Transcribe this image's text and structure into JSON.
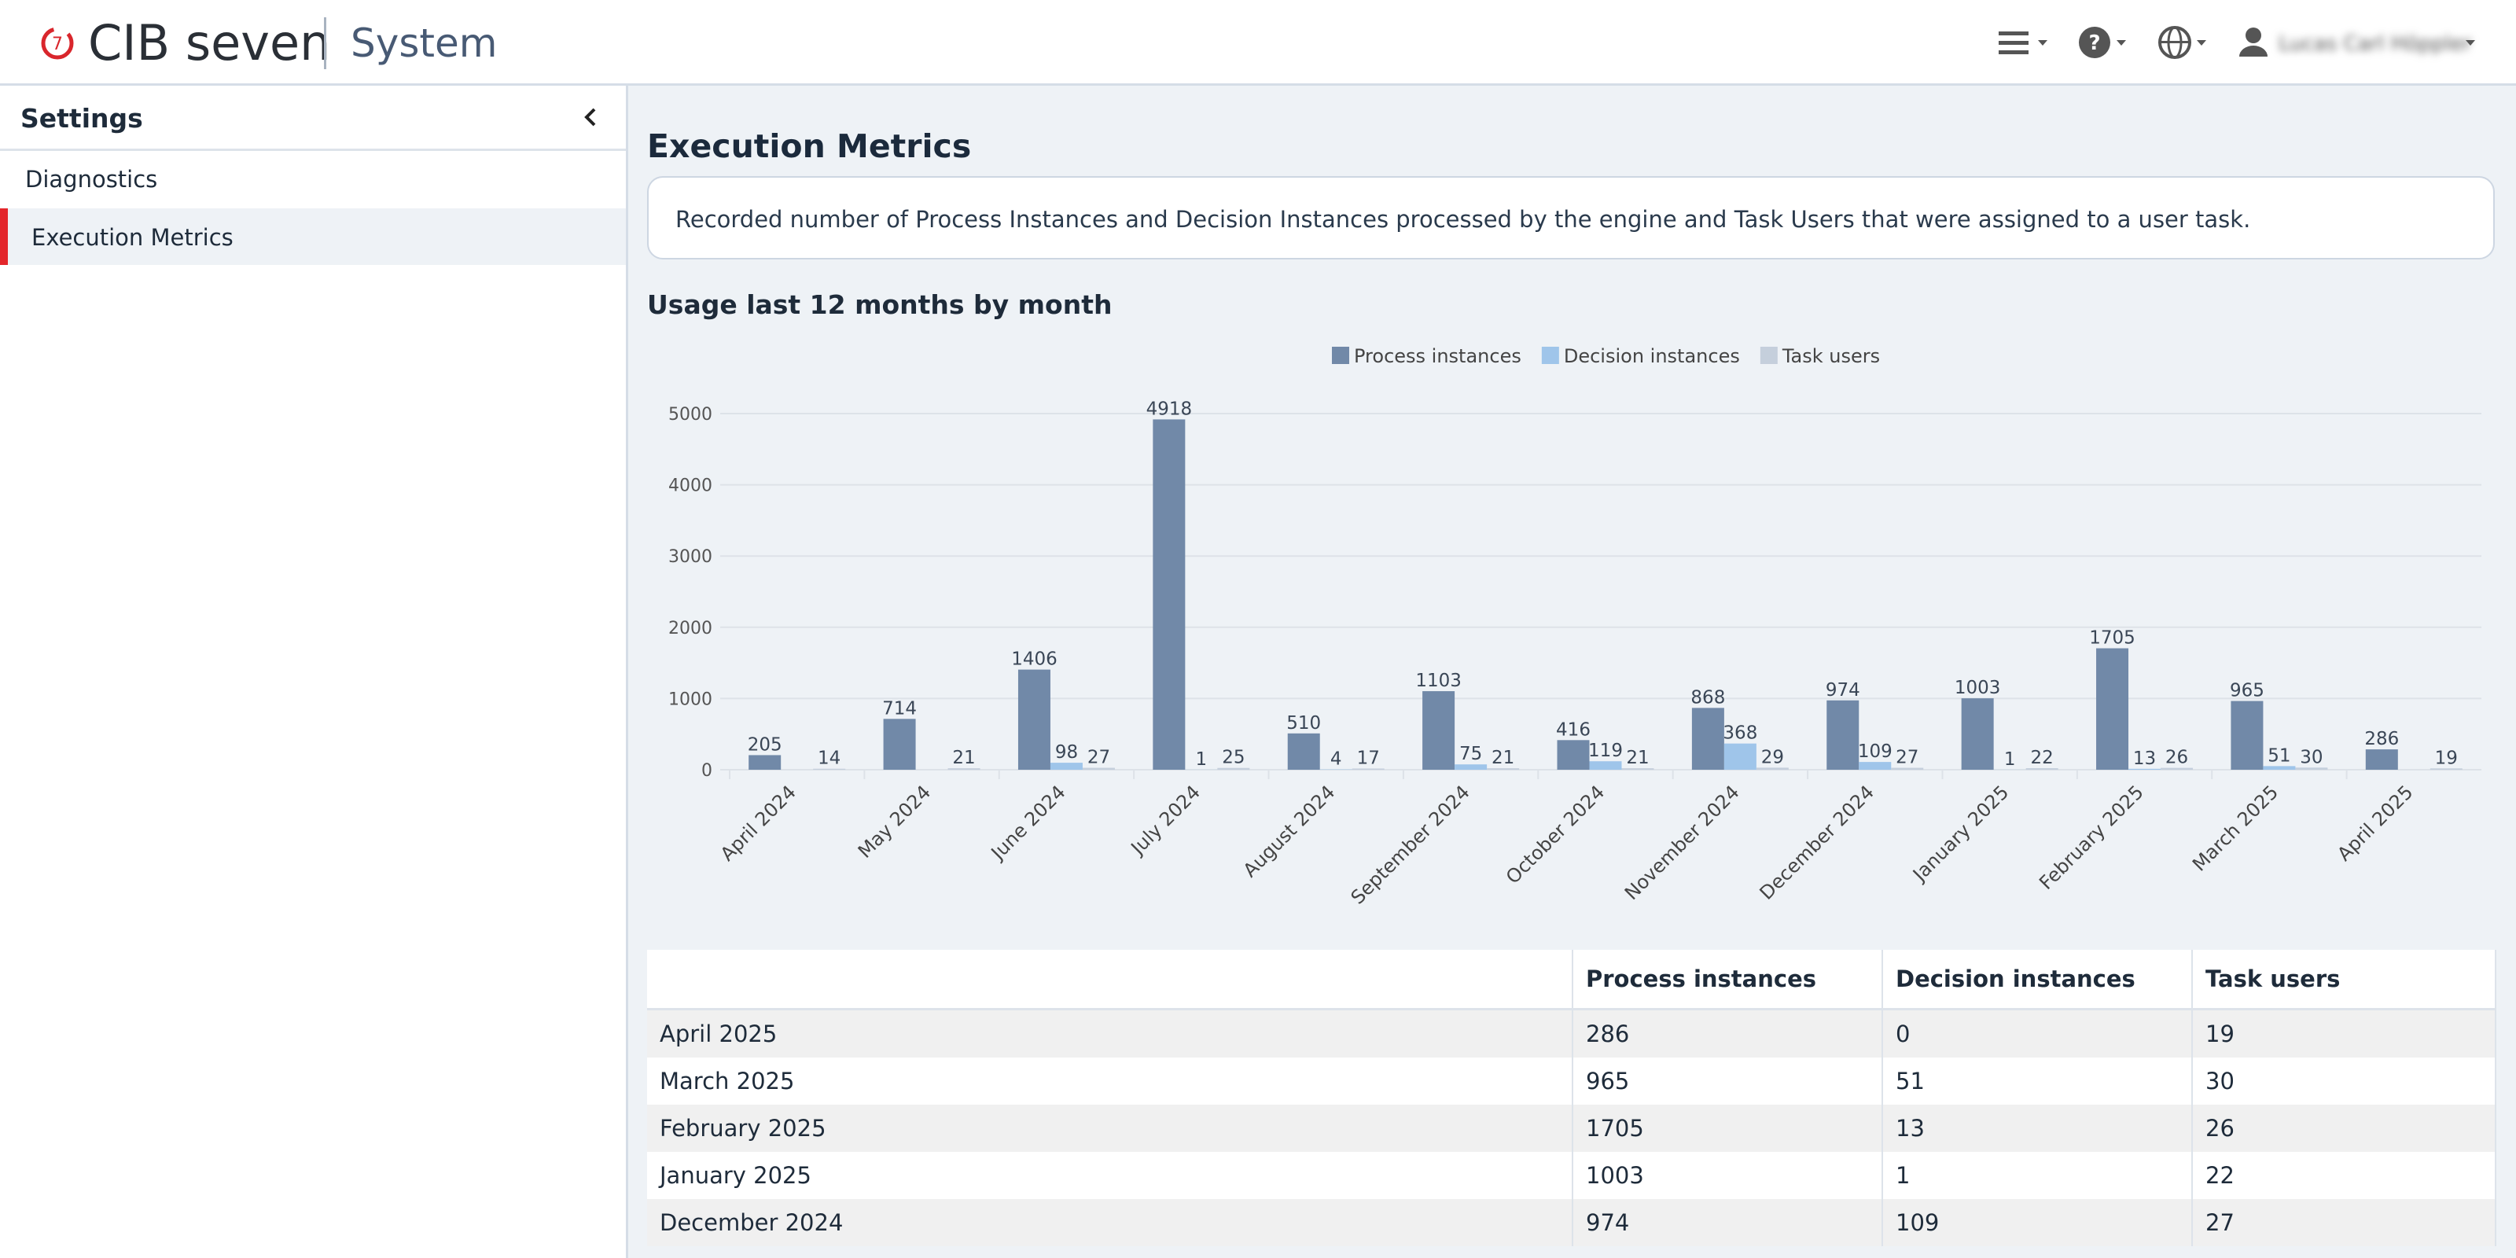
{
  "header": {
    "brand": "CIB seven",
    "section": "System",
    "user": "Lucas Carl Höppler"
  },
  "sidebar": {
    "title": "Settings",
    "items": [
      "Diagnostics",
      "Execution Metrics"
    ]
  },
  "page": {
    "title": "Execution Metrics",
    "description": "Recorded number of Process Instances and Decision Instances processed by the engine and Task Users that were assigned to a user task."
  },
  "chart_data": {
    "type": "bar",
    "title": "Usage last 12 months by month",
    "categories": [
      "April 2024",
      "May 2024",
      "June 2024",
      "July 2024",
      "August 2024",
      "September 2024",
      "October 2024",
      "November 2024",
      "December 2024",
      "January 2025",
      "February 2025",
      "March 2025",
      "April 2025"
    ],
    "series": [
      {
        "name": "Process instances",
        "color": "#7189a8",
        "values": [
          205,
          714,
          1406,
          4918,
          510,
          1103,
          416,
          868,
          974,
          1003,
          1705,
          965,
          286
        ]
      },
      {
        "name": "Decision instances",
        "color": "#9fc5ea",
        "values": [
          0,
          0,
          98,
          1,
          4,
          75,
          119,
          368,
          109,
          1,
          13,
          51,
          0
        ]
      },
      {
        "name": "Task users",
        "color": "#c5cfdc",
        "values": [
          14,
          21,
          27,
          25,
          17,
          21,
          21,
          29,
          27,
          22,
          26,
          30,
          19
        ]
      }
    ],
    "ylim": [
      0,
      5000
    ],
    "yticks": [
      0,
      1000,
      2000,
      3000,
      4000,
      5000
    ],
    "grid": true,
    "legend": "top"
  },
  "table": {
    "columns": [
      "",
      "Process instances",
      "Decision instances",
      "Task users"
    ],
    "rows": [
      [
        "April 2025",
        "286",
        "0",
        "19"
      ],
      [
        "March 2025",
        "965",
        "51",
        "30"
      ],
      [
        "February 2025",
        "1705",
        "13",
        "26"
      ],
      [
        "January 2025",
        "1003",
        "1",
        "22"
      ],
      [
        "December 2024",
        "974",
        "109",
        "27"
      ]
    ]
  }
}
